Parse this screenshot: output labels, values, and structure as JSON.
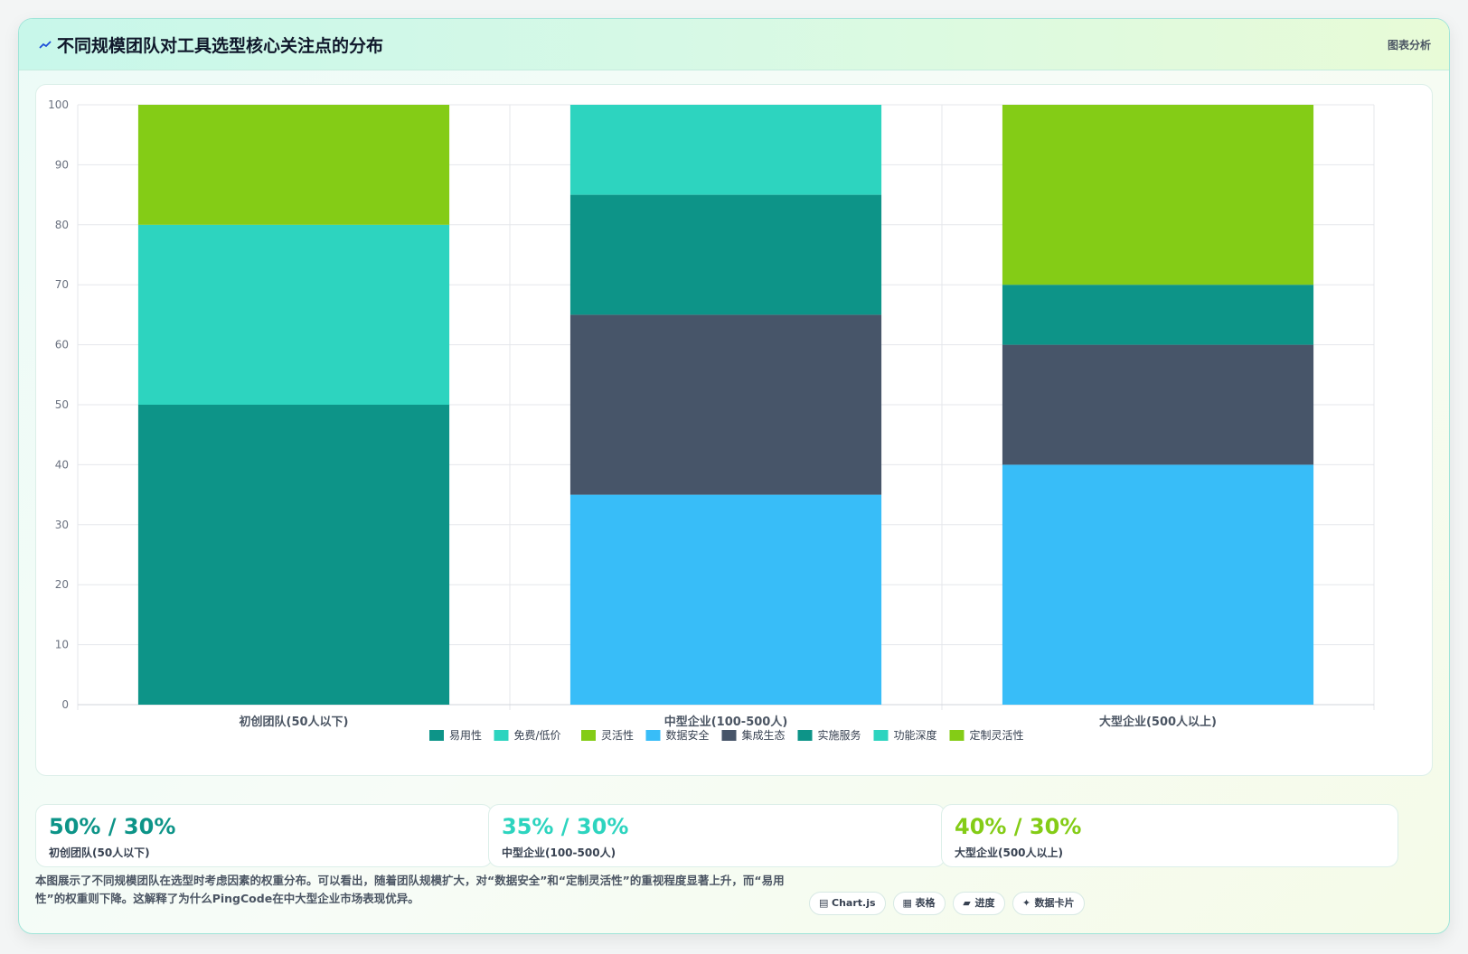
{
  "header": {
    "title": "不同规模团队对工具选型核心关注点的分布",
    "tag": "图表分析"
  },
  "colors": {
    "accent": "#0d9488"
  },
  "chart_data": {
    "type": "bar",
    "stacked": true,
    "categories": [
      "初创团队(50人以下)",
      "中型企业(100-500人)",
      "大型企业(500人以上)"
    ],
    "ylim": [
      0,
      100
    ],
    "yticks": [
      0,
      10,
      20,
      30,
      40,
      50,
      60,
      70,
      80,
      90,
      100
    ],
    "grid": true,
    "legend_position": "bottom",
    "series": [
      {
        "name": "易用性",
        "color": "#0d9488",
        "values": [
          50,
          0,
          0
        ]
      },
      {
        "name": "免费/低价",
        "color": "#2dd4bf",
        "values": [
          30,
          0,
          0
        ]
      },
      {
        "name": "灵活性",
        "color": "#84cc16",
        "values": [
          20,
          0,
          0
        ]
      },
      {
        "name": "数据安全",
        "color": "#38bdf8",
        "values": [
          0,
          35,
          40
        ]
      },
      {
        "name": "集成生态",
        "color": "#475569",
        "values": [
          0,
          30,
          20
        ]
      },
      {
        "name": "实施服务",
        "color": "#0d9488",
        "values": [
          0,
          20,
          10
        ]
      },
      {
        "name": "功能深度",
        "color": "#2dd4bf",
        "values": [
          0,
          15,
          0
        ]
      },
      {
        "name": "定制灵活性",
        "color": "#84cc16",
        "values": [
          0,
          0,
          30
        ]
      }
    ]
  },
  "stats": [
    {
      "value": "50% / 30%",
      "label": "初创团队(50人以下)",
      "color": "#0d9488"
    },
    {
      "value": "35% / 30%",
      "label": "中型企业(100-500人)",
      "color": "#2dd4bf"
    },
    {
      "value": "40% / 30%",
      "label": "大型企业(500人以上)",
      "color": "#84cc16"
    }
  ],
  "description": "本图展示了不同规模团队在选型时考虑因素的权重分布。可以看出，随着团队规模扩大，对“数据安全”和“定制灵活性”的重视程度显著上升，而“易用性”的权重则下降。这解释了为什么PingCode在中大型企业市场表现优异。",
  "chips": [
    {
      "icon": "▤",
      "icon_name": "chart-icon",
      "label": "Chart.js"
    },
    {
      "icon": "▦",
      "icon_name": "table-icon",
      "label": "表格"
    },
    {
      "icon": "▰",
      "icon_name": "progress-icon",
      "label": "进度"
    },
    {
      "icon": "✦",
      "icon_name": "sparkle-icon",
      "label": "数据卡片"
    }
  ]
}
